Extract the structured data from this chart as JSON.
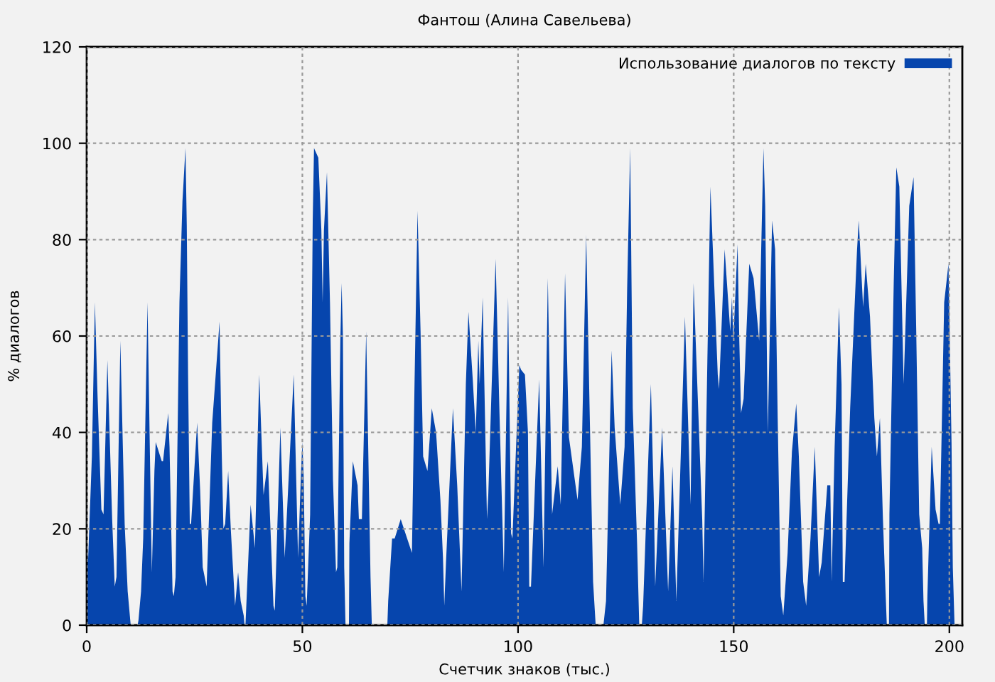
{
  "chart_data": {
    "type": "area",
    "title": "Фантош (Алина Савельева)",
    "xlabel": "Счетчик знаков (тыс.)",
    "ylabel": "% диалогов",
    "x": [
      0.0,
      0.3,
      1.2,
      1.9,
      2.5,
      3.4,
      3.9,
      4.8,
      5.9,
      6.5,
      6.9,
      7.8,
      8.8,
      9.5,
      10.0,
      10.2,
      11.8,
      12.0,
      12.6,
      13.1,
      14.1,
      14.7,
      15.1,
      15.7,
      16.0,
      17.4,
      17.7,
      18.9,
      19.2,
      19.9,
      20.2,
      20.6,
      21.5,
      22.2,
      22.9,
      23.2,
      23.5,
      23.9,
      24.2,
      25.6,
      26.3,
      26.9,
      27.8,
      29.1,
      30.8,
      31.3,
      31.7,
      32.1,
      32.8,
      33.4,
      34.4,
      35.1,
      35.7,
      36.4,
      36.6,
      36.8,
      37.0,
      38.0,
      39.0,
      40.0,
      41.0,
      42.0,
      43.3,
      43.6,
      44.9,
      45.9,
      46.3,
      48.0,
      49.0,
      49.7,
      50.0,
      50.3,
      50.7,
      51.0,
      51.8,
      52.4,
      52.7,
      53.7,
      54.4,
      54.7,
      55.0,
      55.7,
      56.4,
      57.1,
      57.8,
      58.1,
      58.8,
      59.1,
      59.4,
      59.7,
      60.0,
      60.8,
      60.9,
      61.7,
      62.8,
      63.1,
      63.8,
      64.8,
      65.4,
      65.8,
      66.1,
      69.7,
      69.9,
      70.8,
      71.4,
      72.8,
      75.4,
      76.0,
      76.7,
      77.4,
      78.0,
      79.0,
      80.0,
      81.0,
      82.0,
      82.6,
      82.9,
      83.3,
      84.9,
      85.9,
      86.9,
      87.9,
      88.5,
      89.5,
      90.2,
      90.8,
      91.1,
      91.8,
      92.8,
      93.1,
      94.8,
      95.7,
      96.7,
      97.7,
      98.4,
      98.7,
      100.3,
      100.7,
      101.6,
      102.3,
      102.6,
      103.0,
      104.9,
      105.9,
      106.9,
      107.9,
      109.2,
      109.9,
      110.9,
      111.8,
      113.8,
      114.8,
      115.8,
      116.5,
      117.4,
      118.0,
      119.8,
      120.4,
      121.7,
      122.4,
      123.7,
      124.7,
      125.3,
      126.0,
      126.6,
      127.6,
      128.1,
      128.7,
      129.0,
      130.8,
      131.5,
      131.8,
      133.4,
      134.8,
      135.8,
      136.7,
      138.7,
      140.0,
      140.7,
      142.7,
      143.0,
      144.6,
      146.3,
      146.6,
      147.9,
      149.2,
      149.6,
      149.9,
      150.9,
      151.3,
      151.7,
      152.3,
      153.6,
      154.6,
      155.9,
      156.9,
      157.3,
      157.9,
      158.9,
      159.6,
      160.2,
      160.9,
      161.5,
      162.5,
      163.5,
      164.5,
      165.1,
      166.1,
      166.8,
      167.8,
      168.8,
      169.8,
      170.4,
      171.7,
      172.4,
      172.7,
      173.4,
      174.4,
      175.0,
      175.3,
      175.7,
      177.0,
      178.6,
      179.0,
      179.6,
      180.0,
      180.6,
      181.6,
      182.6,
      183.2,
      183.9,
      184.6,
      185.2,
      185.5,
      186.0,
      186.1,
      187.1,
      187.7,
      188.4,
      189.4,
      190.0,
      190.7,
      191.7,
      192.3,
      193.0,
      193.7,
      194.0,
      194.3,
      194.8,
      194.9,
      195.9,
      196.8,
      197.5,
      197.8,
      198.8,
      199.8,
      200.5,
      200.8,
      201.2
    ],
    "series": [
      {
        "name": "Использование диалогов по тексту",
        "color": "#0645ad",
        "values": [
          20,
          13,
          35,
          67,
          48,
          24,
          23,
          55,
          22,
          8,
          10,
          59,
          21,
          7,
          2,
          0,
          0,
          1,
          7,
          18,
          67,
          33,
          11,
          32,
          38,
          34,
          34,
          44,
          37,
          7,
          6,
          10,
          67,
          88,
          99,
          83,
          52,
          21,
          21,
          42,
          28,
          12,
          8,
          42,
          63,
          36,
          20,
          21,
          32,
          20,
          4,
          11,
          5,
          2,
          0,
          0,
          4,
          25,
          16,
          52,
          27,
          34,
          4,
          3,
          41,
          14,
          21,
          52,
          14,
          32,
          38,
          31,
          6,
          4,
          23,
          84,
          99,
          97,
          82,
          67,
          82,
          94,
          67,
          30,
          11,
          12,
          59,
          71,
          60,
          12,
          0,
          0,
          17,
          34,
          29,
          22,
          22,
          61,
          30,
          10,
          0,
          0,
          5,
          18,
          18,
          22,
          15,
          50,
          86,
          61,
          35,
          32,
          45,
          40,
          26,
          14,
          4,
          13,
          45,
          29,
          7,
          50,
          65,
          51,
          40,
          59,
          50,
          68,
          22,
          27,
          76,
          44,
          11,
          68,
          19,
          18,
          54,
          53,
          52,
          40,
          8,
          8,
          51,
          12,
          72,
          23,
          33,
          25,
          73,
          39,
          26,
          37,
          81,
          49,
          9,
          0,
          0,
          5,
          57,
          41,
          25,
          37,
          70,
          99,
          45,
          17,
          0,
          0,
          4,
          50,
          25,
          8,
          41,
          7,
          33,
          5,
          64,
          25,
          71,
          22,
          9,
          91,
          52,
          49,
          78,
          61,
          68,
          59,
          79,
          59,
          44,
          47,
          75,
          72,
          59,
          99,
          87,
          40,
          84,
          78,
          43,
          6,
          2,
          15,
          36,
          46,
          35,
          9,
          4,
          18,
          37,
          10,
          13,
          29,
          29,
          9,
          37,
          66,
          50,
          9,
          9,
          45,
          78,
          84,
          73,
          66,
          75,
          64,
          43,
          35,
          43,
          22,
          7,
          0,
          0,
          23,
          71,
          95,
          91,
          50,
          67,
          87,
          93,
          62,
          23,
          16,
          5,
          0,
          0,
          6,
          37,
          24,
          21,
          21,
          67,
          75,
          38,
          12,
          0
        ]
      }
    ],
    "xlim": [
      0,
      203
    ],
    "ylim": [
      0,
      120
    ],
    "xticks": [
      0,
      50,
      100,
      150,
      200
    ],
    "yticks": [
      0,
      20,
      40,
      60,
      80,
      100,
      120
    ],
    "grid": true,
    "legend": "top right"
  }
}
